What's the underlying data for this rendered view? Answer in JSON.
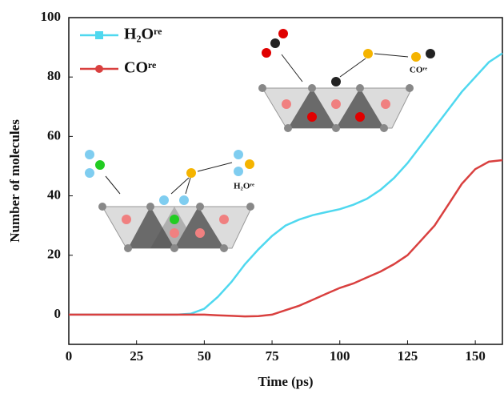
{
  "chart_data": {
    "type": "line",
    "x_label": "Time (ps)",
    "y_label": "Number of molecules",
    "x": [
      0,
      5,
      10,
      15,
      20,
      25,
      30,
      35,
      40,
      45,
      50,
      55,
      60,
      65,
      70,
      75,
      80,
      85,
      90,
      95,
      100,
      105,
      110,
      115,
      120,
      125,
      130,
      135,
      140,
      145,
      150,
      155,
      160
    ],
    "series": [
      {
        "name": "H₂Oʳᵉ",
        "color": "#4fd8ef",
        "marker": "square",
        "values": [
          0,
          0,
          0,
          0,
          0,
          0,
          0,
          0,
          0,
          0.3,
          2,
          6,
          11,
          17,
          22,
          26.5,
          30,
          32,
          33.5,
          34.5,
          35.5,
          37,
          39,
          42,
          46,
          51,
          57,
          63,
          69,
          75,
          80,
          85,
          88
        ]
      },
      {
        "name": "COʳᵉ",
        "color": "#d9403f",
        "marker": "circle",
        "values": [
          0,
          0,
          0,
          0,
          0,
          0,
          0,
          0,
          0,
          0,
          0,
          -0.2,
          -0.4,
          -0.6,
          -0.5,
          0,
          1.5,
          3,
          5,
          7,
          9,
          10.5,
          12.5,
          14.5,
          17,
          20,
          25,
          30,
          37,
          44,
          49,
          51.5,
          52
        ]
      }
    ],
    "xlim": [
      0,
      160
    ],
    "ylim": [
      -10,
      100
    ],
    "xticks": [
      0,
      25,
      50,
      75,
      100,
      125,
      150
    ],
    "yticks": [
      0,
      20,
      40,
      60,
      80,
      100
    ],
    "legend": "upper left",
    "annotations": [
      "H₂Oʳᵉ",
      "COʳᵉ"
    ]
  }
}
